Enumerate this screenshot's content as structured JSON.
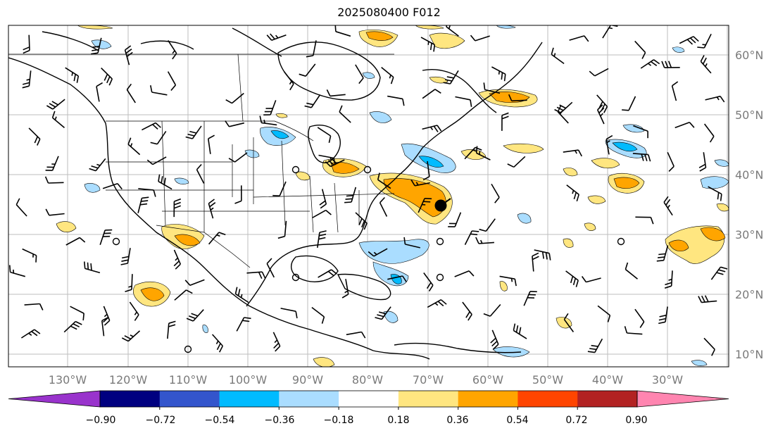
{
  "title": "2025080400 F012",
  "lat_labels": [
    "60°N",
    "50°N",
    "40°N",
    "30°N",
    "20°N",
    "10°N"
  ],
  "lon_labels": [
    "130°W",
    "120°W",
    "110°W",
    "100°W",
    "90°W",
    "80°W",
    "70°W",
    "60°W",
    "50°W",
    "40°W",
    "30°W"
  ],
  "colorbar": {
    "colors": [
      "#9933cc",
      "#000080",
      "#3355cc",
      "#00bbff",
      "#aaddff",
      "#ffffff",
      "#ffe680",
      "#ffa500",
      "#ff4500",
      "#b22222",
      "#ff85b0"
    ],
    "ticks": [
      "−0.90",
      "−0.72",
      "−0.54",
      "−0.36",
      "−0.18",
      "0.18",
      "0.36",
      "0.54",
      "0.72",
      "0.90"
    ]
  },
  "features": {
    "storm_marker": "filled black circle",
    "wind_barbs": "wind-barb-icon"
  }
}
